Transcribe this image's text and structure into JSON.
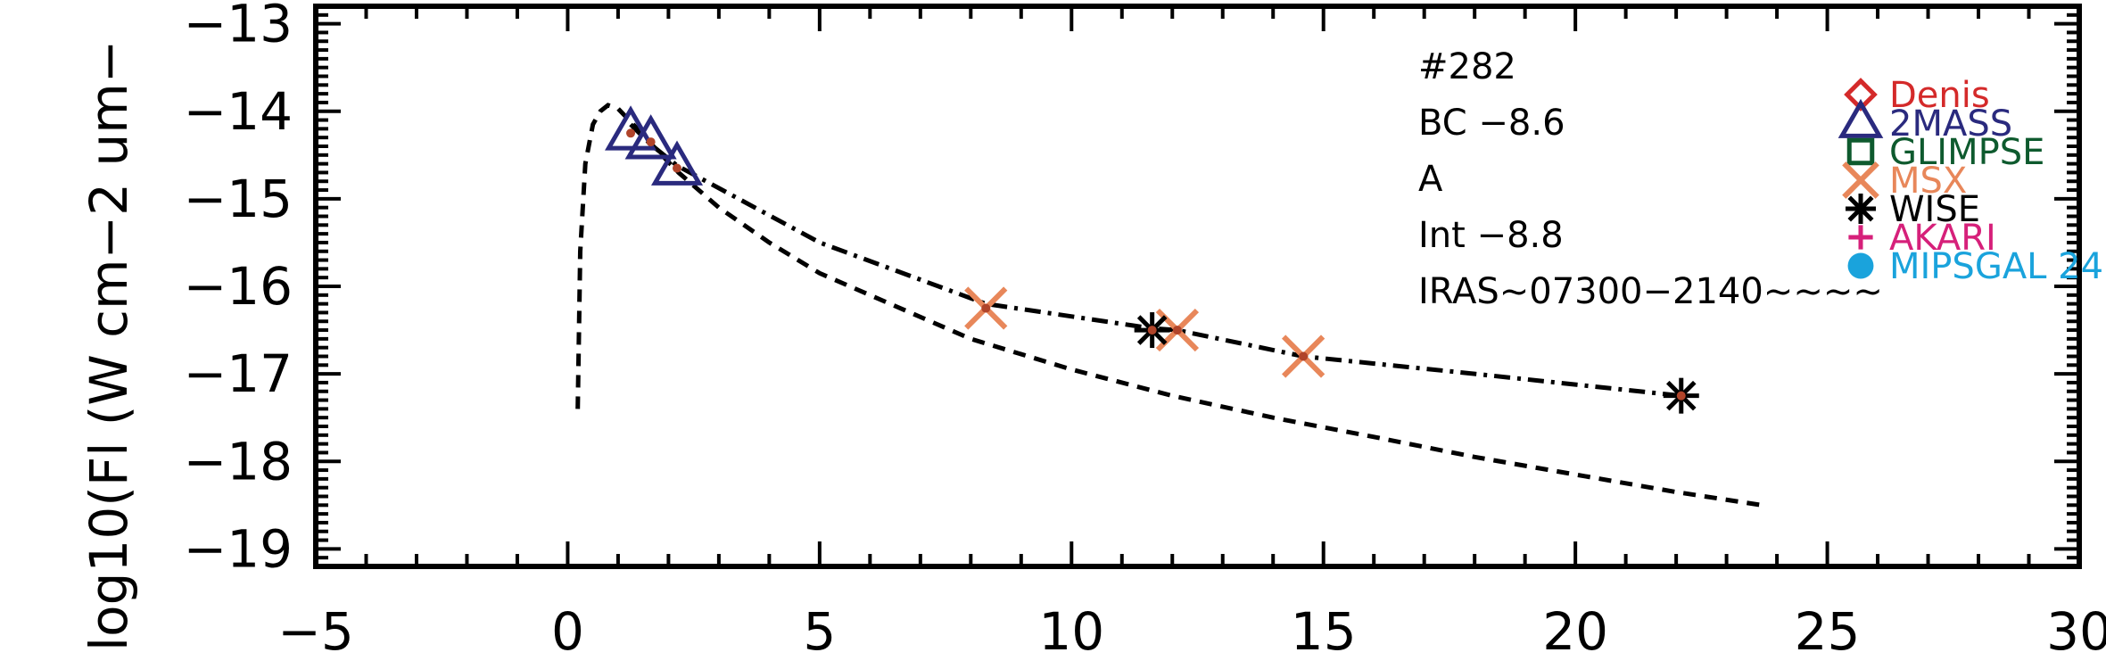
{
  "chart_data": {
    "type": "scatter",
    "title": "",
    "xlabel": "",
    "ylabel": "log10(Fl (W cm−2 um−",
    "xlim": [
      -5,
      30
    ],
    "ylim": [
      -19.2,
      -12.8
    ],
    "x_ticks": [
      -5,
      0,
      5,
      10,
      15,
      20,
      25,
      30
    ],
    "x_tick_labels": [
      "−5",
      "0",
      "5",
      "10",
      "15",
      "20",
      "25",
      "30"
    ],
    "y_ticks": [
      -13,
      -14,
      -15,
      -16,
      -17,
      -18,
      -19
    ],
    "y_tick_labels": [
      "−13",
      "−14",
      "−15",
      "−16",
      "−17",
      "−18",
      "−19"
    ],
    "annotations": [
      "#282",
      "BC  −8.6",
      "A",
      "Int  −8.8",
      "IRAS~07300−2140~~~~"
    ],
    "legend": {
      "placement": "top-right",
      "entries": [
        {
          "name": "Denis",
          "marker": "diamond",
          "color": "#d42a2a"
        },
        {
          "name": "2MASS",
          "marker": "triangle",
          "color": "#2a2a7e"
        },
        {
          "name": "GLIMPSE",
          "marker": "square",
          "color": "#0e5a2e"
        },
        {
          "name": "MSX",
          "marker": "x",
          "color": "#e8875a"
        },
        {
          "name": "WISE",
          "marker": "asterisk",
          "color": "#000000"
        },
        {
          "name": "AKARI",
          "marker": "plus",
          "color": "#d6207a"
        },
        {
          "name": "MIPSGAL 24",
          "marker": "circle",
          "color": "#1aa3dc"
        }
      ]
    },
    "series": [
      {
        "marker": "triangle",
        "color": "#2a2a7e",
        "x": [
          1.25,
          1.65,
          2.17
        ],
        "y": [
          -14.25,
          -14.35,
          -14.65
        ]
      },
      {
        "marker": "x",
        "color": "#e8875a",
        "x": [
          8.3,
          12.1,
          14.6
        ],
        "y": [
          -16.25,
          -16.5,
          -16.8
        ]
      },
      {
        "marker": "asterisk",
        "color": "#000000",
        "x": [
          11.6,
          22.1
        ],
        "y": [
          -16.5,
          -17.25
        ]
      },
      {
        "line": "dashdot",
        "color": "#000000",
        "x": [
          1.25,
          1.65,
          2.17,
          5,
          8.3,
          11.6,
          12.1,
          14.6,
          18,
          22.1
        ],
        "y": [
          -14.15,
          -14.38,
          -14.62,
          -15.5,
          -16.2,
          -16.48,
          -16.5,
          -16.8,
          -17.0,
          -17.25
        ]
      },
      {
        "line": "dashed",
        "color": "#000000",
        "x": [
          0.2,
          0.25,
          0.35,
          0.5,
          0.65,
          0.8,
          1.0,
          1.3,
          1.7,
          2.2,
          3,
          4,
          5,
          6,
          8,
          10,
          12,
          14,
          16,
          18,
          20,
          22,
          23.7
        ],
        "y": [
          -17.4,
          -15.6,
          -14.6,
          -14.15,
          -14.0,
          -13.93,
          -13.97,
          -14.15,
          -14.4,
          -14.7,
          -15.1,
          -15.5,
          -15.85,
          -16.1,
          -16.6,
          -16.95,
          -17.25,
          -17.5,
          -17.72,
          -17.95,
          -18.15,
          -18.35,
          -18.5
        ]
      }
    ]
  }
}
